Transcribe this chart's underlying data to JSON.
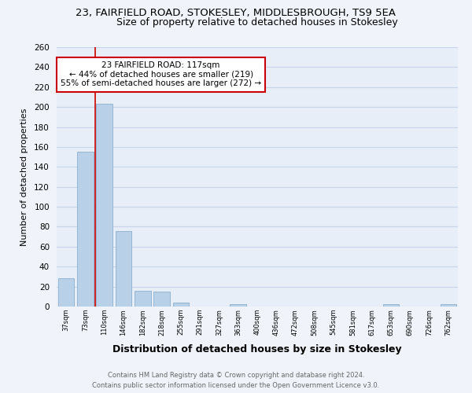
{
  "title": "23, FAIRFIELD ROAD, STOKESLEY, MIDDLESBROUGH, TS9 5EA",
  "subtitle": "Size of property relative to detached houses in Stokesley",
  "xlabel": "Distribution of detached houses by size in Stokesley",
  "ylabel": "Number of detached properties",
  "bar_values": [
    28,
    155,
    203,
    76,
    16,
    15,
    4,
    0,
    0,
    2,
    0,
    0,
    0,
    0,
    0,
    0,
    0,
    2,
    0,
    0,
    2
  ],
  "bar_color": "#b8d0e8",
  "bar_edge_color": "#8ab0cc",
  "x_labels": [
    "37sqm",
    "73sqm",
    "110sqm",
    "146sqm",
    "182sqm",
    "218sqm",
    "255sqm",
    "291sqm",
    "327sqm",
    "363sqm",
    "400sqm",
    "436sqm",
    "472sqm",
    "508sqm",
    "545sqm",
    "581sqm",
    "617sqm",
    "653sqm",
    "690sqm",
    "726sqm",
    "762sqm"
  ],
  "ylim": [
    0,
    260
  ],
  "yticks": [
    0,
    20,
    40,
    60,
    80,
    100,
    120,
    140,
    160,
    180,
    200,
    220,
    240,
    260
  ],
  "vline_x_idx": 2,
  "vline_color": "#cc0000",
  "annotation_title": "23 FAIRFIELD ROAD: 117sqm",
  "annotation_line1": "← 44% of detached houses are smaller (219)",
  "annotation_line2": "55% of semi-detached houses are larger (272) →",
  "annotation_box_color": "#ffffff",
  "annotation_box_edge": "#cc0000",
  "footer_line1": "Contains HM Land Registry data © Crown copyright and database right 2024.",
  "footer_line2": "Contains public sector information licensed under the Open Government Licence v3.0.",
  "background_color": "#f0f4fa",
  "plot_background": "#e8eef8",
  "grid_color": "#c8d4e8",
  "title_fontsize": 9.5,
  "subtitle_fontsize": 9.0
}
